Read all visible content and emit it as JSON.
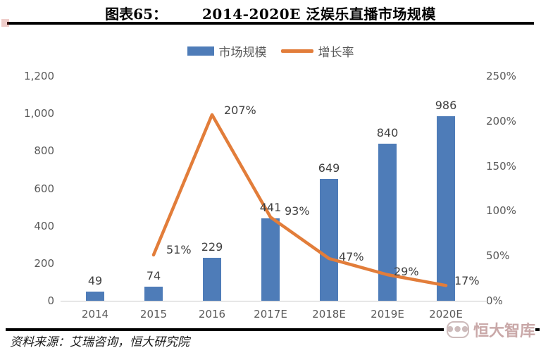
{
  "header": {
    "figure_label": "图表65：",
    "title": "2014-2020E 泛娱乐直播市场规模"
  },
  "legend": {
    "items": [
      {
        "label": "市场规模",
        "swatch": "bar",
        "color": "#4E7CB8"
      },
      {
        "label": "增长率",
        "swatch": "line",
        "color": "#E27D3A"
      }
    ]
  },
  "chart_data": {
    "type": "bar",
    "title": "2014-2020E 泛娱乐直播市场规模",
    "categories": [
      "2014",
      "2015",
      "2016",
      "2017E",
      "2018E",
      "2019E",
      "2020E"
    ],
    "series": [
      {
        "name": "市场规模",
        "type": "bar",
        "axis": "left",
        "color": "#4E7CB8",
        "values": [
          49,
          74,
          229,
          441,
          649,
          840,
          986
        ],
        "labels": [
          "49",
          "74",
          "229",
          "441",
          "649",
          "840",
          "986"
        ]
      },
      {
        "name": "增长率",
        "type": "line",
        "axis": "right",
        "color": "#E27D3A",
        "values": [
          null,
          51,
          207,
          93,
          47,
          29,
          17
        ],
        "labels": [
          null,
          "51%",
          "207%",
          "93%",
          "47%",
          "29%",
          "17%"
        ],
        "unit": "%"
      }
    ],
    "left_axis": {
      "min": 0,
      "max": 1200,
      "ticks": [
        "0",
        "200",
        "400",
        "600",
        "800",
        "1,000",
        "1,200"
      ]
    },
    "right_axis": {
      "min": 0,
      "max": 250,
      "ticks": [
        "0%",
        "50%",
        "100%",
        "150%",
        "200%",
        "250%"
      ],
      "unit": "%"
    },
    "grid": false,
    "legend_position": "top"
  },
  "footer": {
    "source": "资料来源：艾瑞咨询，恒大研究院",
    "watermark": "恒大智库"
  },
  "colors": {
    "bar": "#4E7CB8",
    "line": "#E27D3A",
    "tick_label": "#595959",
    "data_label": "#404040",
    "axis_line": "#C9C9C9",
    "rule": "#000000",
    "watermark": "#C9A8A8"
  }
}
